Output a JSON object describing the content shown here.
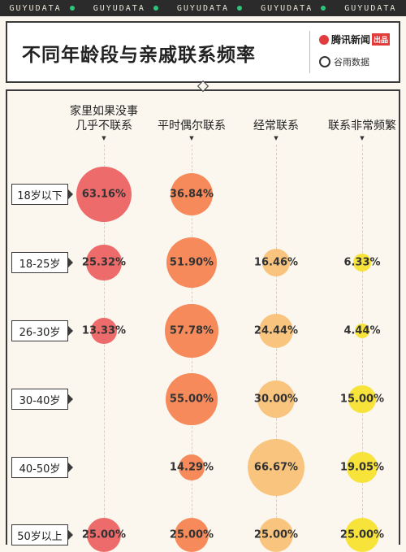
{
  "topbar": {
    "brand": "GUYUDATA",
    "repeat": 5,
    "dot_color": "#2ec77a"
  },
  "header": {
    "title": "不同年龄段与亲戚联系频率",
    "logo1": "腾讯新闻",
    "logo1_tag": "出品",
    "logo2": "谷雨数据"
  },
  "chart_data": {
    "type": "bubble-matrix",
    "categories": [
      "家里如果没事\n几乎不联系",
      "平时偶尔联系",
      "经常联系",
      "联系非常频繁"
    ],
    "rows": [
      "18岁以下",
      "18-25岁",
      "26-30岁",
      "30-40岁",
      "40-50岁",
      "50岁以上"
    ],
    "values": [
      [
        63.16,
        36.84,
        0,
        0
      ],
      [
        25.32,
        51.9,
        16.46,
        6.33
      ],
      [
        13.33,
        57.78,
        24.44,
        4.44
      ],
      [
        0,
        55.0,
        30.0,
        15.0
      ],
      [
        0,
        14.29,
        66.67,
        19.05
      ],
      [
        25.0,
        25.0,
        25.0,
        25.0
      ]
    ],
    "labels": [
      [
        "63.16%",
        "36.84%",
        "",
        ""
      ],
      [
        "25.32%",
        "51.90%",
        "16.46%",
        "6.33%"
      ],
      [
        "13.33%",
        "57.78%",
        "24.44%",
        "4.44%"
      ],
      [
        "",
        "55.00%",
        "30.00%",
        "15.00%"
      ],
      [
        "",
        "14.29%",
        "66.67%",
        "19.05%"
      ],
      [
        "25.00%",
        "25.00%",
        "25.00%",
        "25.00%"
      ]
    ],
    "colors": [
      "#ee6b6b",
      "#f68a5a",
      "#f9c57e",
      "#f7e33a"
    ]
  }
}
